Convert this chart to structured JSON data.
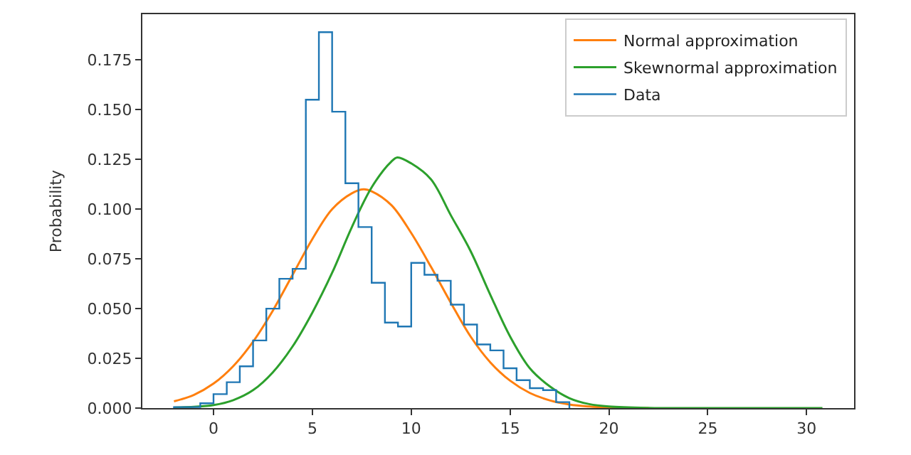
{
  "chart_data": {
    "type": "histogram",
    "ylabel": "Probability",
    "xlim": [
      -3.6,
      32.4
    ],
    "xticks": [
      0,
      5,
      10,
      15,
      20,
      25,
      30
    ],
    "ylim": [
      0,
      0.198
    ],
    "yticks": [
      {
        "value": 0,
        "label": "0.000"
      },
      {
        "value": 0.025,
        "label": "0.025"
      },
      {
        "value": 0.05,
        "label": "0.050"
      },
      {
        "value": 0.075,
        "label": "0.075"
      },
      {
        "value": 0.1,
        "label": "0.100"
      },
      {
        "value": 0.125,
        "label": "0.125"
      },
      {
        "value": 0.15,
        "label": "0.150"
      },
      {
        "value": 0.175,
        "label": "0.175"
      }
    ],
    "legend": "top right",
    "series": [
      {
        "name": "Normal approximation",
        "type": "line",
        "color": "#ff7f0e",
        "x": [
          -2,
          -1,
          0,
          1,
          2,
          3,
          4,
          5,
          6,
          7,
          7.6,
          8,
          9,
          10,
          11,
          12,
          13,
          14,
          15,
          16,
          17,
          18,
          19,
          20,
          22
        ],
        "values": [
          0.0034,
          0.0066,
          0.0123,
          0.0211,
          0.0334,
          0.049,
          0.067,
          0.085,
          0.1,
          0.108,
          0.11,
          0.109,
          0.102,
          0.088,
          0.071,
          0.053,
          0.036,
          0.023,
          0.0138,
          0.0076,
          0.0039,
          0.0018,
          0.0008,
          0.0003,
          0.0
        ]
      },
      {
        "name": "Skewnormal approximation",
        "type": "line",
        "color": "#2ca02c",
        "x": [
          -2,
          -1,
          0,
          1,
          2,
          3,
          4,
          5,
          6,
          7,
          8,
          9,
          9.3,
          10,
          11,
          12,
          13,
          14,
          15,
          16,
          17,
          18,
          19,
          20,
          22,
          25,
          30.8
        ],
        "values": [
          0.0003,
          0.0006,
          0.0015,
          0.004,
          0.009,
          0.018,
          0.031,
          0.048,
          0.068,
          0.091,
          0.111,
          0.124,
          0.126,
          0.123,
          0.115,
          0.097,
          0.079,
          0.057,
          0.036,
          0.02,
          0.011,
          0.005,
          0.002,
          0.0008,
          0.0001,
          0.0,
          0.0
        ]
      },
      {
        "name": "Data",
        "color": "#1f77b4",
        "bins": [
          -2.0,
          -1.33,
          -0.67,
          0.0,
          0.67,
          1.33,
          2.0,
          2.67,
          3.33,
          4.0,
          4.67,
          5.33,
          6.0,
          6.67,
          7.33,
          8.0,
          8.67,
          9.33,
          10.0,
          10.67,
          11.33,
          12.0,
          12.67,
          13.33,
          14.0,
          14.67,
          15.33,
          16.0,
          16.67,
          17.33,
          18.0
        ],
        "values": [
          0.0005,
          0.0005,
          0.0024,
          0.007,
          0.013,
          0.021,
          0.034,
          0.05,
          0.065,
          0.07,
          0.155,
          0.189,
          0.149,
          0.113,
          0.091,
          0.063,
          0.043,
          0.041,
          0.073,
          0.067,
          0.064,
          0.052,
          0.042,
          0.032,
          0.029,
          0.02,
          0.014,
          0.01,
          0.009,
          0.003
        ]
      }
    ]
  }
}
